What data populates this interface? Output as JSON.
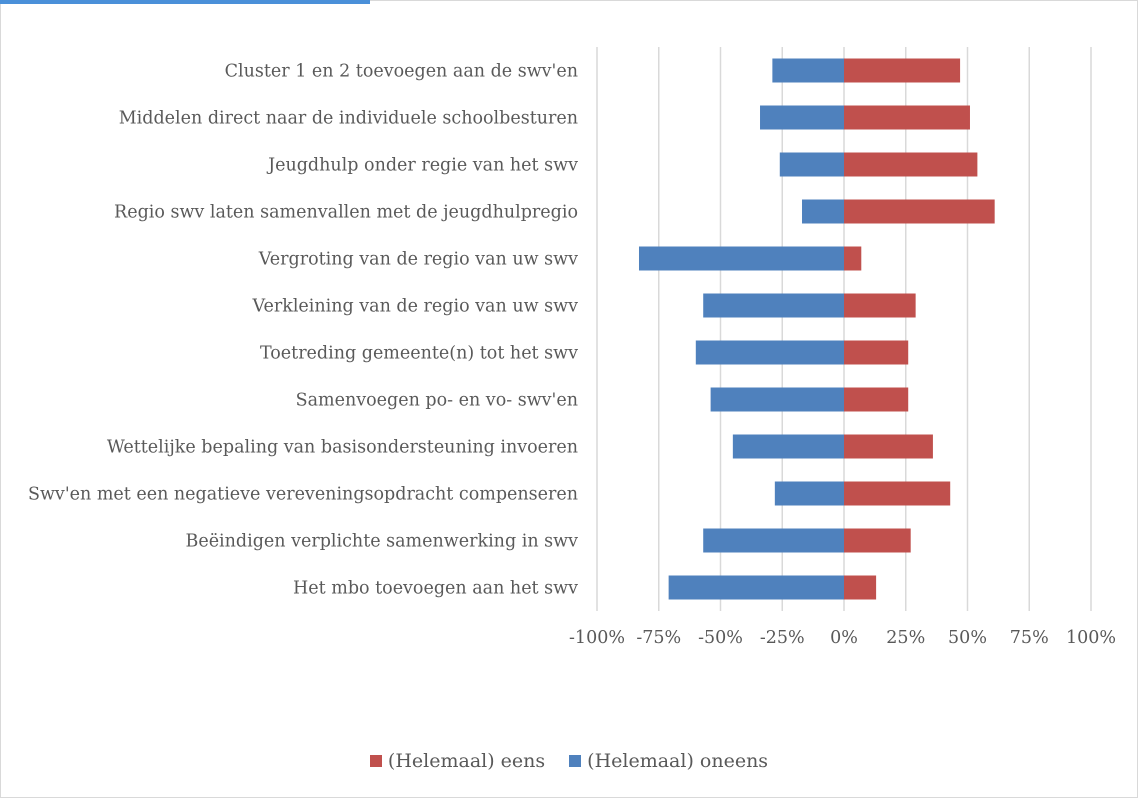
{
  "chart_data": {
    "type": "bar",
    "orientation": "horizontal",
    "stacked": "diverging",
    "categories": [
      "Cluster 1 en 2 toevoegen aan de swv'en",
      "Middelen direct naar de individuele schoolbesturen",
      "Jeugdhulp onder regie van het swv",
      "Regio swv laten samenvallen met de jeugdhulpregio",
      "Vergroting van de regio van uw swv",
      "Verkleining van de regio van uw swv",
      "Toetreding gemeente(n) tot het swv",
      "Samenvoegen po- en vo- swv'en",
      "Wettelijke bepaling van basisondersteuning invoeren",
      "Swv'en met een negatieve vereveningsopdracht compenseren",
      "Beëindigen verplichte samenwerking in swv",
      "Het mbo toevoegen aan het swv"
    ],
    "series": [
      {
        "name": "(Helemaal) eens",
        "color": "#c0504d",
        "values": [
          0.47,
          0.51,
          0.54,
          0.61,
          0.07,
          0.29,
          0.26,
          0.26,
          0.36,
          0.43,
          0.27,
          0.13
        ]
      },
      {
        "name": "(Helemaal) oneens",
        "color": "#4f81bd",
        "values": [
          -0.29,
          -0.34,
          -0.26,
          -0.17,
          -0.83,
          -0.57,
          -0.6,
          -0.54,
          -0.45,
          -0.28,
          -0.57,
          -0.71
        ]
      }
    ],
    "xlim": [
      -1,
      1
    ],
    "xticks": [
      "-100%",
      "-75%",
      "-50%",
      "-25%",
      "0%",
      "25%",
      "50%",
      "75%",
      "100%"
    ],
    "xtick_values": [
      -1,
      -0.75,
      -0.5,
      -0.25,
      0,
      0.25,
      0.5,
      0.75,
      1
    ],
    "grid": true,
    "legend_position": "bottom",
    "legend_order": [
      "(Helemaal) eens",
      "(Helemaal) oneens"
    ]
  }
}
